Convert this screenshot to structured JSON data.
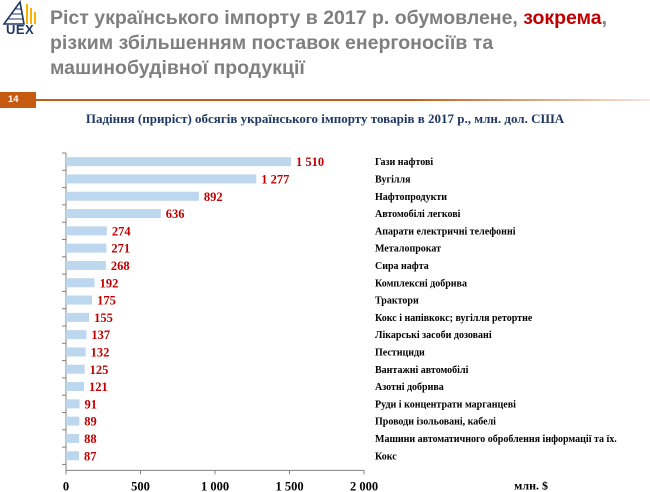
{
  "logo": {
    "text": "UEX"
  },
  "header": {
    "title_before": "Ріст українського імпорту в 2017 р. обумовлене, ",
    "title_highlight": "зокрема",
    "title_after": ", різким збільшенням поставок енергоносіїв та машинобудівної продукції",
    "page_number": "14",
    "accent_color": "#c55a11",
    "highlight_color": "#c00000"
  },
  "chart_data": {
    "type": "bar",
    "orientation": "horizontal",
    "title": "Падіння (приріст) обсягів українського імпорту  товарів в 2017 р., млн. дол. США",
    "unit_label": "млн. $",
    "bar_color": "#bdd7ee",
    "label_color": "#c00000",
    "xlim": [
      0,
      2000
    ],
    "xticks": [
      0,
      500,
      1000,
      1500,
      2000
    ],
    "xtick_labels": [
      "0",
      "500",
      "1 000",
      "1 500",
      "2 000"
    ],
    "categories": [
      "Гази нафтові",
      "Вугілля",
      "Нафтопродукти",
      "Автомобілі легкові",
      "Апарати електричні телефонні",
      "Металопрокат",
      "Сира нафта",
      "Комплексні добрива",
      "Трактори",
      "Кокс і напівкокс; вугілля ретортне",
      "Лікарські засоби дозовані",
      "Пестициди",
      "Вантажні автомобілі",
      "Азотні добрива",
      "Руди і концентрати марганцеві",
      "Проводи ізольовані, кабелі",
      "Машини автоматичного оброблення інформації та їх.",
      "Кокс"
    ],
    "values": [
      1510,
      1277,
      892,
      636,
      274,
      271,
      268,
      192,
      175,
      155,
      137,
      132,
      125,
      121,
      91,
      89,
      88,
      87
    ],
    "value_labels": [
      "1 510",
      "1 277",
      "892",
      "636",
      "274",
      "271",
      "268",
      "192",
      "175",
      "155",
      "137",
      "132",
      "125",
      "121",
      "91",
      "89",
      "88",
      "87"
    ]
  }
}
